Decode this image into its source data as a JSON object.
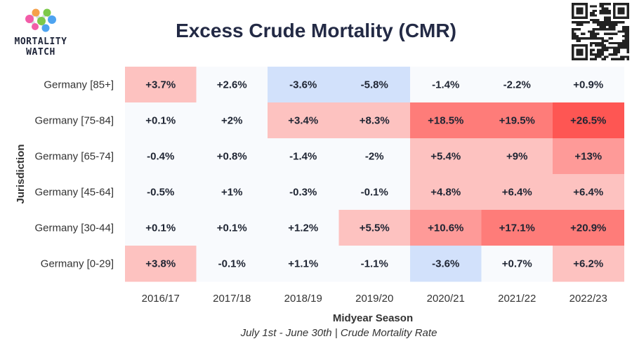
{
  "brand": {
    "name_line1": "MORTALITY",
    "name_line2": "WATCH",
    "logo_colors": [
      "#f25ca8",
      "#f5a04a",
      "#7cc94a",
      "#4da3f0"
    ]
  },
  "qr_icon": "qr-code-icon",
  "subtitle": "July 1st - June 30th | Crude Mortality Rate",
  "chart_data": {
    "type": "heatmap",
    "title": "Excess Crude Mortality (CMR)",
    "xlabel": "Midyear Season",
    "ylabel": "Jurisdiction",
    "x": [
      "2016/17",
      "2017/18",
      "2018/19",
      "2019/20",
      "2020/21",
      "2021/22",
      "2022/23"
    ],
    "y": [
      "Germany [85+]",
      "Germany [75-84]",
      "Germany [65-74]",
      "Germany [45-64]",
      "Germany [30-44]",
      "Germany [0-29]"
    ],
    "values": [
      [
        3.7,
        2.6,
        -3.6,
        -5.8,
        -1.4,
        -2.2,
        0.9
      ],
      [
        0.1,
        2,
        3.4,
        8.3,
        18.5,
        19.5,
        26.5
      ],
      [
        -0.4,
        0.8,
        -1.4,
        -2,
        5.4,
        9,
        13
      ],
      [
        -0.5,
        1,
        -0.3,
        -0.1,
        4.8,
        6.4,
        6.4
      ],
      [
        0.1,
        0.1,
        1.2,
        5.5,
        10.6,
        17.1,
        20.9
      ],
      [
        3.8,
        -0.1,
        1.1,
        -1.1,
        -3.6,
        0.7,
        6.2
      ]
    ],
    "labels": [
      [
        "+3.7%",
        "+2.6%",
        "-3.6%",
        "-5.8%",
        "-1.4%",
        "-2.2%",
        "+0.9%"
      ],
      [
        "+0.1%",
        "+2%",
        "+3.4%",
        "+8.3%",
        "+18.5%",
        "+19.5%",
        "+26.5%"
      ],
      [
        "-0.4%",
        "+0.8%",
        "-1.4%",
        "-2%",
        "+5.4%",
        "+9%",
        "+13%"
      ],
      [
        "-0.5%",
        "+1%",
        "-0.3%",
        "-0.1%",
        "+4.8%",
        "+6.4%",
        "+6.4%"
      ],
      [
        "+0.1%",
        "+0.1%",
        "+1.2%",
        "+5.5%",
        "+10.6%",
        "+17.1%",
        "+20.9%"
      ],
      [
        "+3.8%",
        "-0.1%",
        "+1.1%",
        "-1.1%",
        "-3.6%",
        "+0.7%",
        "+6.2%"
      ]
    ],
    "color_scale": {
      "neutral": "#f8fafd",
      "negative": "#d2e1fb",
      "positive_light": "#fdc2c0",
      "positive_mid": "#fe9a98",
      "positive_strong": "#fe7c79",
      "positive_max": "#fe5653"
    },
    "legend": "none",
    "grid": false
  }
}
